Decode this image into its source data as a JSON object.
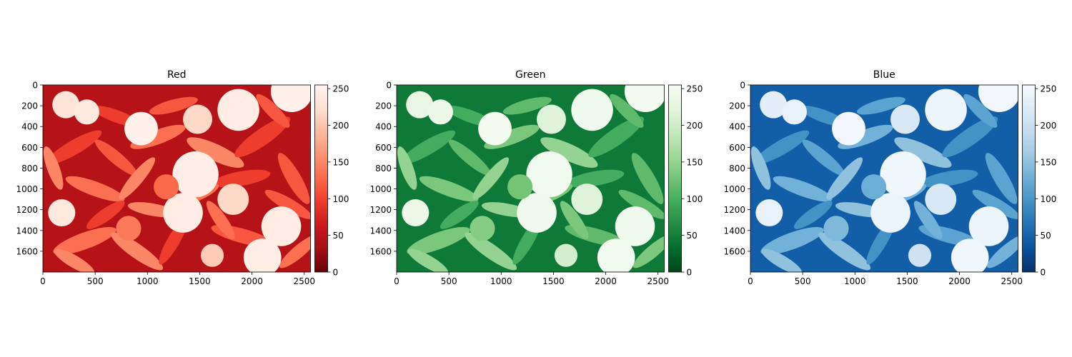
{
  "chart_data": [
    {
      "type": "heatmap",
      "title": "Red",
      "colormap": "Reds_r",
      "colormap_stops": [
        "#67000d",
        "#a50f15",
        "#cb181d",
        "#ef3b2c",
        "#fb6a4a",
        "#fc9272",
        "#fcbba1",
        "#fee0d2",
        "#fff5f0"
      ],
      "image_width": 2560,
      "image_height": 1800,
      "xlim": [
        0,
        2560
      ],
      "ylim": [
        1800,
        0
      ],
      "xticks": [
        "0",
        "500",
        "1000",
        "1500",
        "2000",
        "2500"
      ],
      "yticks": [
        "0",
        "200",
        "400",
        "600",
        "800",
        "1000",
        "1200",
        "1400",
        "1600"
      ],
      "colorbar_range": [
        0,
        255
      ],
      "colorbar_ticks": [
        "0",
        "50",
        "100",
        "150",
        "200",
        "250"
      ]
    },
    {
      "type": "heatmap",
      "title": "Green",
      "colormap": "Greens_r",
      "colormap_stops": [
        "#00441b",
        "#006d2c",
        "#238b45",
        "#41ab5d",
        "#74c476",
        "#a1d99b",
        "#c7e9c0",
        "#e5f5e0",
        "#f7fcf5"
      ],
      "image_width": 2560,
      "image_height": 1800,
      "xlim": [
        0,
        2560
      ],
      "ylim": [
        1800,
        0
      ],
      "xticks": [
        "0",
        "500",
        "1000",
        "1500",
        "2000",
        "2500"
      ],
      "yticks": [
        "0",
        "200",
        "400",
        "600",
        "800",
        "1000",
        "1200",
        "1400",
        "1600"
      ],
      "colorbar_range": [
        0,
        255
      ],
      "colorbar_ticks": [
        "0",
        "50",
        "100",
        "150",
        "200",
        "250"
      ]
    },
    {
      "type": "heatmap",
      "title": "Blue",
      "colormap": "Blues_r",
      "colormap_stops": [
        "#08306b",
        "#08519c",
        "#2171b5",
        "#4292c6",
        "#6baed6",
        "#9ecae1",
        "#c6dbef",
        "#deebf7",
        "#f7fbff"
      ],
      "image_width": 2560,
      "image_height": 1800,
      "xlim": [
        0,
        2560
      ],
      "ylim": [
        1800,
        0
      ],
      "xticks": [
        "0",
        "500",
        "1000",
        "1500",
        "2000",
        "2500"
      ],
      "yticks": [
        "0",
        "200",
        "400",
        "600",
        "800",
        "1000",
        "1200",
        "1400",
        "1600"
      ],
      "colorbar_range": [
        0,
        255
      ],
      "colorbar_ticks": [
        "0",
        "50",
        "100",
        "150",
        "200",
        "250"
      ]
    }
  ]
}
